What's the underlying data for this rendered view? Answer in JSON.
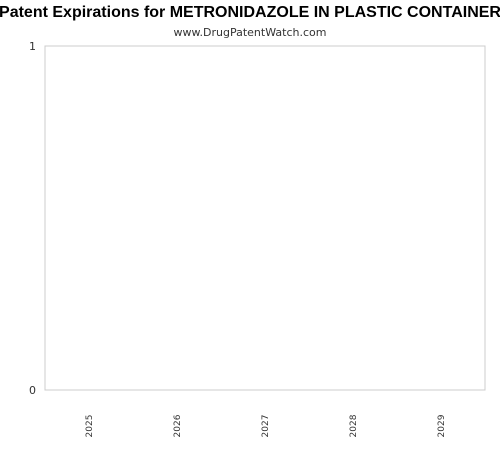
{
  "chart_data": {
    "type": "bar",
    "title": "Patent Expirations for METRONIDAZOLE IN PLASTIC CONTAINER",
    "subtitle": "www.DrugPatentWatch.com",
    "xlabel": "",
    "ylabel": "",
    "categories": [
      "2025",
      "2026",
      "2027",
      "2028",
      "2029"
    ],
    "values": [
      0,
      0,
      0,
      0,
      0
    ],
    "ylim": [
      0,
      1
    ],
    "yticks": [
      0,
      1
    ],
    "grid": false,
    "legend": "none",
    "colors": {
      "plot_border": "#cccccc",
      "bar": "#4a7ebb"
    }
  }
}
